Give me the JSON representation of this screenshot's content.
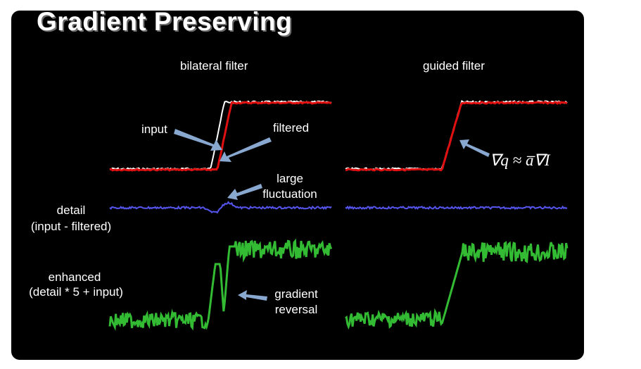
{
  "slide": {
    "title": "Gradient Preserving",
    "column_titles": {
      "left": "bilateral filter",
      "right": "guided filter"
    },
    "labels": {
      "input": "input",
      "filtered": "filtered",
      "large_fluctuation_1": "large",
      "large_fluctuation_2": "fluctuation",
      "detail_1": "detail",
      "detail_2": "(input - filtered)",
      "enhanced_1": "enhanced",
      "enhanced_2": "(detail * 5 + input)",
      "gradient_reversal_1": "gradient",
      "gradient_reversal_2": "reversal"
    },
    "formula": "∇q ≈ a̅∇I",
    "colors": {
      "background": "#000000",
      "input_signal": "#ffffff",
      "filtered_signal": "#e01010",
      "detail_signal": "#5555ee",
      "enhanced_signal": "#33bb33",
      "arrow": "#88a8d0"
    }
  }
}
